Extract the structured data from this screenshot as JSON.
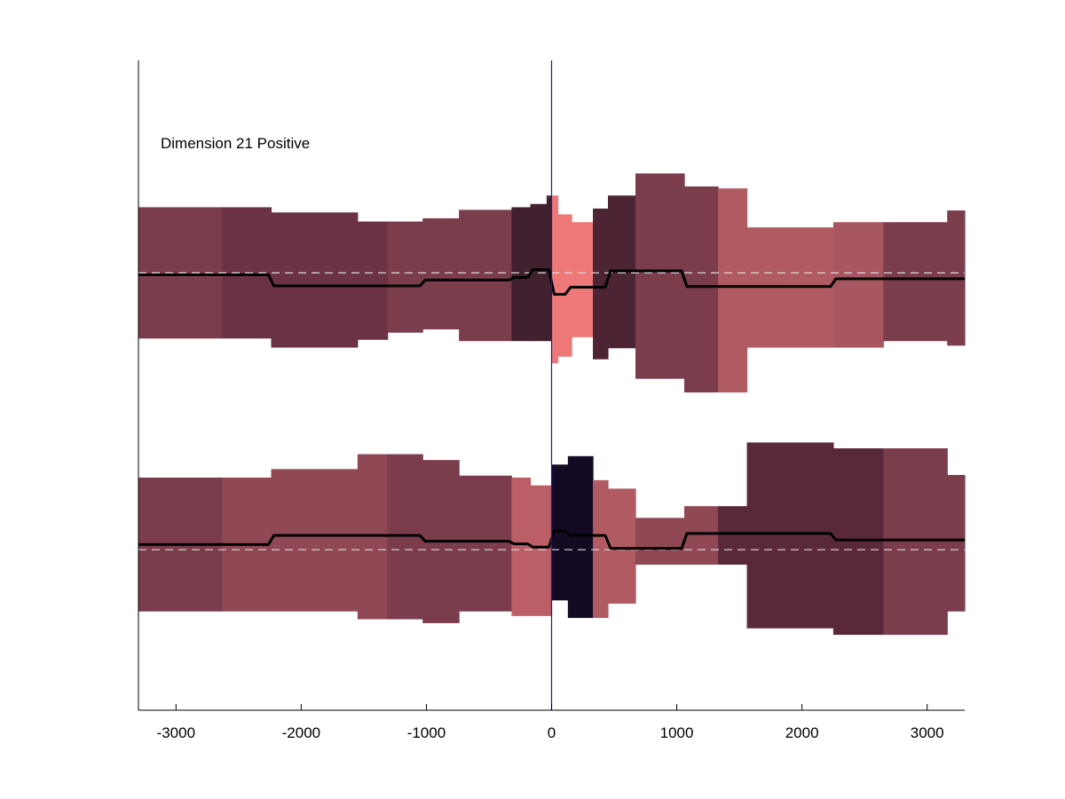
{
  "chart_data": {
    "type": "area",
    "annotation": "Dimension 21 Positive",
    "xlim": [
      -3300,
      3300
    ],
    "xticks": [
      -3000,
      -2000,
      -1000,
      0,
      1000,
      2000,
      3000
    ],
    "xtick_labels": [
      "-3000",
      "-2000",
      "-1000",
      "0",
      "1000",
      "2000",
      "3000"
    ],
    "ylim": [
      0,
      1
    ],
    "grid": false,
    "legend": "none",
    "zero_line_color": "#1a1aa0",
    "mean_line_color": "#000000",
    "baseline_color": "#dddddd",
    "tracks": [
      {
        "baseline": 0.673,
        "blocks": [
          {
            "x0": -3300,
            "x1": -2630,
            "lo": 0.572,
            "hi": 0.774,
            "color": "#7b3c4c"
          },
          {
            "x0": -2630,
            "x1": -2240,
            "lo": 0.572,
            "hi": 0.774,
            "color": "#6a3244"
          },
          {
            "x0": -2240,
            "x1": -1550,
            "lo": 0.558,
            "hi": 0.766,
            "color": "#6a3244"
          },
          {
            "x0": -1550,
            "x1": -1310,
            "lo": 0.57,
            "hi": 0.752,
            "color": "#6a3244"
          },
          {
            "x0": -1310,
            "x1": -1030,
            "lo": 0.581,
            "hi": 0.752,
            "color": "#7b3c4c"
          },
          {
            "x0": -1030,
            "x1": -740,
            "lo": 0.586,
            "hi": 0.757,
            "color": "#7b3c4c"
          },
          {
            "x0": -740,
            "x1": -320,
            "lo": 0.568,
            "hi": 0.77,
            "color": "#7b3c4c"
          },
          {
            "x0": -320,
            "x1": -170,
            "lo": 0.568,
            "hi": 0.774,
            "color": "#41202f"
          },
          {
            "x0": -170,
            "x1": -40,
            "lo": 0.568,
            "hi": 0.779,
            "color": "#41202f"
          },
          {
            "x0": -40,
            "x1": 0,
            "lo": 0.568,
            "hi": 0.792,
            "color": "#41202f"
          },
          {
            "x0": 0,
            "x1": 50,
            "lo": 0.534,
            "hi": 0.792,
            "color": "#ee7878"
          },
          {
            "x0": 50,
            "x1": 160,
            "lo": 0.544,
            "hi": 0.763,
            "color": "#ee7878"
          },
          {
            "x0": 160,
            "x1": 330,
            "lo": 0.574,
            "hi": 0.751,
            "color": "#ee7878"
          },
          {
            "x0": 330,
            "x1": 450,
            "lo": 0.54,
            "hi": 0.772,
            "color": "#4d2434"
          },
          {
            "x0": 450,
            "x1": 670,
            "lo": 0.557,
            "hi": 0.792,
            "color": "#4d2434"
          },
          {
            "x0": 670,
            "x1": 760,
            "lo": 0.51,
            "hi": 0.826,
            "color": "#7b3c4c"
          },
          {
            "x0": 760,
            "x1": 1060,
            "lo": 0.51,
            "hi": 0.826,
            "color": "#7b3c4c"
          },
          {
            "x0": 1060,
            "x1": 1330,
            "lo": 0.489,
            "hi": 0.806,
            "color": "#7b3c4c"
          },
          {
            "x0": 1330,
            "x1": 1560,
            "lo": 0.489,
            "hi": 0.803,
            "color": "#b05a62"
          },
          {
            "x0": 1560,
            "x1": 2250,
            "lo": 0.558,
            "hi": 0.743,
            "color": "#b05a62"
          },
          {
            "x0": 2250,
            "x1": 2650,
            "lo": 0.558,
            "hi": 0.751,
            "color": "#a85660"
          },
          {
            "x0": 2650,
            "x1": 3160,
            "lo": 0.568,
            "hi": 0.751,
            "color": "#7b3c4c"
          },
          {
            "x0": 3160,
            "x1": 3300,
            "lo": 0.561,
            "hi": 0.769,
            "color": "#7b3c4c"
          }
        ],
        "mean": [
          {
            "x0": -3300,
            "x1": -2240,
            "y": 0.67
          },
          {
            "x0": -2240,
            "x1": -1030,
            "y": 0.653
          },
          {
            "x0": -1030,
            "x1": -320,
            "y": 0.662
          },
          {
            "x0": -320,
            "x1": -170,
            "y": 0.666
          },
          {
            "x0": -170,
            "x1": 0,
            "y": 0.678
          },
          {
            "x0": 0,
            "x1": 130,
            "y": 0.64
          },
          {
            "x0": 130,
            "x1": 450,
            "y": 0.651
          },
          {
            "x0": 450,
            "x1": 1060,
            "y": 0.676
          },
          {
            "x0": 1060,
            "x1": 2250,
            "y": 0.652
          },
          {
            "x0": 2250,
            "x1": 3300,
            "y": 0.664
          }
        ]
      },
      {
        "baseline": 0.247,
        "blocks": [
          {
            "x0": -3300,
            "x1": -2630,
            "lo": 0.152,
            "hi": 0.358,
            "color": "#7b3c4c"
          },
          {
            "x0": -2630,
            "x1": -2240,
            "lo": 0.152,
            "hi": 0.358,
            "color": "#8f4854"
          },
          {
            "x0": -2240,
            "x1": -1550,
            "lo": 0.152,
            "hi": 0.371,
            "color": "#8f4854"
          },
          {
            "x0": -1550,
            "x1": -1310,
            "lo": 0.14,
            "hi": 0.394,
            "color": "#8f4854"
          },
          {
            "x0": -1310,
            "x1": -1030,
            "lo": 0.14,
            "hi": 0.394,
            "color": "#7b3c4c"
          },
          {
            "x0": -1030,
            "x1": -740,
            "lo": 0.134,
            "hi": 0.385,
            "color": "#7b3c4c"
          },
          {
            "x0": -740,
            "x1": -320,
            "lo": 0.152,
            "hi": 0.361,
            "color": "#7b3c4c"
          },
          {
            "x0": -320,
            "x1": -170,
            "lo": 0.145,
            "hi": 0.358,
            "color": "#bc5e65"
          },
          {
            "x0": -170,
            "x1": -40,
            "lo": 0.145,
            "hi": 0.346,
            "color": "#bc5e65"
          },
          {
            "x0": -40,
            "x1": 0,
            "lo": 0.145,
            "hi": 0.346,
            "color": "#bc5e65"
          },
          {
            "x0": 0,
            "x1": 130,
            "lo": 0.169,
            "hi": 0.378,
            "color": "#140a24"
          },
          {
            "x0": 130,
            "x1": 330,
            "lo": 0.142,
            "hi": 0.391,
            "color": "#140a24"
          },
          {
            "x0": 330,
            "x1": 450,
            "lo": 0.142,
            "hi": 0.354,
            "color": "#b05a62"
          },
          {
            "x0": 450,
            "x1": 670,
            "lo": 0.164,
            "hi": 0.341,
            "color": "#b05a62"
          },
          {
            "x0": 670,
            "x1": 1060,
            "lo": 0.224,
            "hi": 0.296,
            "color": "#8f4854"
          },
          {
            "x0": 1060,
            "x1": 1330,
            "lo": 0.224,
            "hi": 0.314,
            "color": "#8f4854"
          },
          {
            "x0": 1330,
            "x1": 1560,
            "lo": 0.224,
            "hi": 0.314,
            "color": "#59283a"
          },
          {
            "x0": 1560,
            "x1": 2250,
            "lo": 0.126,
            "hi": 0.412,
            "color": "#59283a"
          },
          {
            "x0": 2250,
            "x1": 2650,
            "lo": 0.116,
            "hi": 0.403,
            "color": "#59283a"
          },
          {
            "x0": 2650,
            "x1": 3160,
            "lo": 0.116,
            "hi": 0.403,
            "color": "#7b3c4c"
          },
          {
            "x0": 3160,
            "x1": 3300,
            "lo": 0.152,
            "hi": 0.362,
            "color": "#7b3c4c"
          }
        ],
        "mean": [
          {
            "x0": -3300,
            "x1": -2240,
            "y": 0.255
          },
          {
            "x0": -2240,
            "x1": -1030,
            "y": 0.269
          },
          {
            "x0": -1030,
            "x1": -320,
            "y": 0.26
          },
          {
            "x0": -320,
            "x1": -170,
            "y": 0.256
          },
          {
            "x0": -170,
            "x1": 0,
            "y": 0.251
          },
          {
            "x0": 0,
            "x1": 130,
            "y": 0.276
          },
          {
            "x0": 130,
            "x1": 450,
            "y": 0.269
          },
          {
            "x0": 450,
            "x1": 1060,
            "y": 0.249
          },
          {
            "x0": 1060,
            "x1": 2250,
            "y": 0.272
          },
          {
            "x0": 2250,
            "x1": 3300,
            "y": 0.262
          }
        ]
      }
    ]
  }
}
